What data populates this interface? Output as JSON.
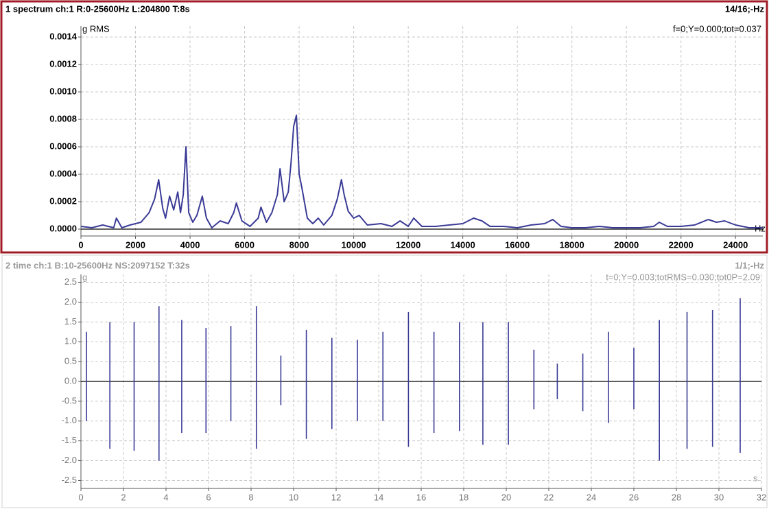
{
  "chart_data": [
    {
      "type": "line",
      "title": "1 spectrum ch:1 R:0-25600Hz L:204800 T:8s",
      "status": "14/16;-Hz",
      "y_label": "g RMS",
      "x_label": "Hz",
      "cursor": "f=0;Y=0.000;tot=0.037",
      "color": "#3a3a96",
      "grid": true,
      "xlim": [
        0,
        25000
      ],
      "xticks": [
        0,
        2000,
        4000,
        6000,
        8000,
        10000,
        12000,
        14000,
        16000,
        18000,
        20000,
        22000,
        24000
      ],
      "ylim": [
        -5e-05,
        0.00148
      ],
      "yticks": [
        {
          "value": 0,
          "label": "0.0000"
        },
        {
          "value": 0.0002,
          "label": "0.0002"
        },
        {
          "value": 0.0004,
          "label": "0.0004"
        },
        {
          "value": 0.0006,
          "label": "0.0006"
        },
        {
          "value": 0.0008,
          "label": "0.0008"
        },
        {
          "value": 0.001,
          "label": "0.0010"
        },
        {
          "value": 0.0012,
          "label": "0.0012"
        },
        {
          "value": 0.0014,
          "label": "0.0014"
        }
      ],
      "x": [
        0,
        400,
        800,
        1200,
        1300,
        1500,
        1800,
        2200,
        2500,
        2700,
        2850,
        3000,
        3100,
        3250,
        3400,
        3550,
        3650,
        3750,
        3850,
        3950,
        4100,
        4250,
        4450,
        4600,
        4800,
        5100,
        5400,
        5600,
        5700,
        5900,
        6200,
        6500,
        6600,
        6800,
        7000,
        7200,
        7300,
        7450,
        7600,
        7700,
        7800,
        7900,
        8000,
        8100,
        8300,
        8500,
        8700,
        8900,
        9200,
        9400,
        9550,
        9650,
        9800,
        10000,
        10200,
        10500,
        11000,
        11400,
        11700,
        12000,
        12200,
        12500,
        13000,
        13500,
        14000,
        14400,
        14700,
        15000,
        15500,
        16000,
        16500,
        17000,
        17300,
        17600,
        18000,
        18500,
        19000,
        19500,
        20000,
        20500,
        21000,
        21200,
        21500,
        22000,
        22500,
        23000,
        23300,
        23600,
        24000,
        24500,
        25000
      ],
      "values": [
        2e-05,
        1e-05,
        3e-05,
        1e-05,
        8e-05,
        1e-05,
        3e-05,
        5e-05,
        0.00012,
        0.00022,
        0.00036,
        0.00015,
        8e-05,
        0.00024,
        0.00014,
        0.00027,
        0.00012,
        0.00025,
        0.0006,
        0.00012,
        5e-05,
        0.0001,
        0.00024,
        8e-05,
        1e-05,
        6e-05,
        4e-05,
        0.00012,
        0.00019,
        6e-05,
        2e-05,
        8e-05,
        0.00016,
        5e-05,
        0.00012,
        0.00025,
        0.00044,
        0.0002,
        0.00027,
        0.00048,
        0.00075,
        0.00083,
        0.0004,
        0.0003,
        8e-05,
        4e-05,
        8e-05,
        3e-05,
        0.0001,
        0.00022,
        0.00036,
        0.00025,
        0.00013,
        8e-05,
        0.0001,
        3e-05,
        4e-05,
        2e-05,
        6e-05,
        2e-05,
        8e-05,
        2e-05,
        2e-05,
        3e-05,
        4e-05,
        8e-05,
        6e-05,
        2e-05,
        2e-05,
        1e-05,
        3e-05,
        4e-05,
        7e-05,
        2e-05,
        1e-05,
        1e-05,
        2e-05,
        1e-05,
        1e-05,
        1e-05,
        2e-05,
        5e-05,
        2e-05,
        2e-05,
        3e-05,
        7e-05,
        5e-05,
        6e-05,
        3e-05,
        1e-05,
        1e-05
      ]
    },
    {
      "type": "stem",
      "title": "2 time ch:1 B:10-25600Hz NS:2097152 T:32s",
      "status": "1/1;-Hz",
      "y_label": "g",
      "x_label": "s",
      "cursor": "t=0;Y=0.003;totRMS=0.030;tot0P=2.09",
      "color": "#3a3a96",
      "grid": true,
      "xlim": [
        0,
        32
      ],
      "xticks": [
        0,
        2,
        4,
        6,
        8,
        10,
        12,
        14,
        16,
        18,
        20,
        22,
        24,
        26,
        28,
        30,
        32
      ],
      "ylim": [
        -2.7,
        2.7
      ],
      "yticks": [
        2.5,
        {
          "value": 2,
          "label": "2.0"
        },
        1.5,
        {
          "value": 1,
          "label": "1.0"
        },
        0.5,
        {
          "value": 0,
          "label": "0.0"
        },
        -0.5,
        {
          "value": -1,
          "label": "-1.0"
        },
        -1.5,
        {
          "value": -2,
          "label": "-2.0"
        },
        -2.5
      ],
      "x": [
        0.26,
        1.36,
        2.5,
        3.67,
        4.74,
        5.88,
        7.05,
        8.25,
        9.4,
        10.6,
        11.8,
        13.0,
        14.2,
        15.4,
        16.6,
        17.8,
        18.9,
        20.1,
        21.3,
        22.4,
        23.6,
        24.8,
        26.0,
        27.2,
        28.5,
        29.7,
        31.0
      ],
      "values": [
        1.25,
        1.5,
        1.5,
        1.9,
        1.55,
        1.35,
        1.4,
        1.9,
        0.65,
        1.3,
        1.1,
        1.05,
        1.25,
        1.75,
        1.25,
        1.5,
        1.5,
        1.5,
        0.8,
        0.45,
        0.7,
        1.25,
        0.85,
        1.55,
        1.75,
        1.8,
        2.1
      ],
      "low_values": [
        -1.0,
        -1.7,
        -1.75,
        -2.0,
        -1.3,
        -1.3,
        -1.0,
        -1.7,
        -0.6,
        -1.45,
        -1.2,
        -1.0,
        -1.0,
        -1.65,
        -1.3,
        -1.25,
        -1.6,
        -1.6,
        -0.7,
        -0.45,
        -0.75,
        -1.05,
        -0.7,
        -2.0,
        -1.7,
        -1.65,
        -1.8
      ]
    }
  ]
}
